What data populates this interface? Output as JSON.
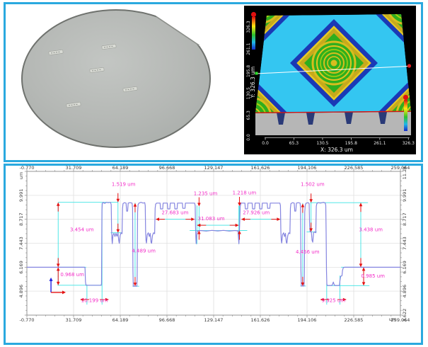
{
  "colors": {
    "frame": "#2aa9df",
    "profile_line": "#8585e0",
    "measure_cyan": "#3be3e3",
    "arrow_red": "#e51212",
    "label_magenta": "#f32cc8",
    "grid": "#e0e0e0",
    "spine": "#8a8a8a",
    "surface_bg": "#000000"
  },
  "wafer": {
    "marks": [
      [
        55,
        62
      ],
      [
        130,
        54
      ],
      [
        113,
        87
      ],
      [
        160,
        114
      ],
      [
        80,
        136
      ]
    ]
  },
  "surface3d": {
    "x_axis": {
      "title": "X: 326.3 um",
      "ticks": [
        "0.0",
        "65.3",
        "130.5",
        "195.8",
        "261.1",
        "326.3"
      ]
    },
    "y_axis": {
      "title": "Y: 326.3 um",
      "ticks": [
        "0.0",
        "65.3",
        "130.5",
        "195.8",
        "261.1",
        "326.3"
      ]
    }
  },
  "chart_data": {
    "type": "line",
    "title": "",
    "unit": "um",
    "xlim": [
      -0.77,
      259.064
    ],
    "ylim": [
      3.622,
      11.265
    ],
    "x_ticks": [
      "-0.770",
      "31.709",
      "64.189",
      "96.668",
      "129.147",
      "161.626",
      "194.106",
      "226.585",
      "259.064"
    ],
    "y_ticks_left": [
      "9.991",
      "8.717",
      "7.443",
      "6.169",
      "4.896"
    ],
    "y_ticks_right": [
      "11.265",
      "9.991",
      "8.717",
      "7.443",
      "6.169",
      "4.896",
      "3.622"
    ],
    "grid": true,
    "profile_points": [
      [
        -0.77,
        6.169
      ],
      [
        39.4,
        6.169
      ],
      [
        39.7,
        6.12
      ],
      [
        40.0,
        5.4
      ],
      [
        40.3,
        5.21
      ],
      [
        50.9,
        5.21
      ],
      [
        51.15,
        5.3
      ],
      [
        51.45,
        9.2
      ],
      [
        51.7,
        9.55
      ],
      [
        52.3,
        9.62
      ],
      [
        53.4,
        9.56
      ],
      [
        54.4,
        9.62
      ],
      [
        55.9,
        9.6
      ],
      [
        57.4,
        9.62
      ],
      [
        57.9,
        9.5
      ],
      [
        58.15,
        8.2
      ],
      [
        58.4,
        7.7
      ],
      [
        58.65,
        7.42
      ],
      [
        59.1,
        7.88
      ],
      [
        59.8,
        7.97
      ],
      [
        60.5,
        7.8
      ],
      [
        61.2,
        7.97
      ],
      [
        61.9,
        7.82
      ],
      [
        62.6,
        7.98
      ],
      [
        63.1,
        7.6
      ],
      [
        63.5,
        7.44
      ],
      [
        64.1,
        7.85
      ],
      [
        64.8,
        8.0
      ],
      [
        65.4,
        7.95
      ],
      [
        65.75,
        9.3
      ],
      [
        66.1,
        9.55
      ],
      [
        67.0,
        9.6
      ],
      [
        68.2,
        9.58
      ],
      [
        68.6,
        9.15
      ],
      [
        69.3,
        9.15
      ],
      [
        69.7,
        9.58
      ],
      [
        71.0,
        9.6
      ],
      [
        72.4,
        9.58
      ],
      [
        72.75,
        9.3
      ],
      [
        73.0,
        6.0
      ],
      [
        73.25,
        5.16
      ],
      [
        75.7,
        5.16
      ],
      [
        75.95,
        5.6
      ],
      [
        76.25,
        9.1
      ],
      [
        76.6,
        9.5
      ],
      [
        77.2,
        9.58
      ],
      [
        78.6,
        9.62
      ],
      [
        80.1,
        9.58
      ],
      [
        81.2,
        9.6
      ],
      [
        81.55,
        9.45
      ],
      [
        81.8,
        8.1
      ],
      [
        82.1,
        7.6
      ],
      [
        82.4,
        7.45
      ],
      [
        83.0,
        7.9
      ],
      [
        83.7,
        8.0
      ],
      [
        84.4,
        7.8
      ],
      [
        85.0,
        7.97
      ],
      [
        85.6,
        7.5
      ],
      [
        86.0,
        7.44
      ],
      [
        86.6,
        7.85
      ],
      [
        87.3,
        8.0
      ],
      [
        88.1,
        7.95
      ],
      [
        88.45,
        9.3
      ],
      [
        88.8,
        9.52
      ],
      [
        89.5,
        9.58
      ],
      [
        91.9,
        9.58
      ],
      [
        92.2,
        9.27
      ],
      [
        93.7,
        9.27
      ],
      [
        94.0,
        9.58
      ],
      [
        96.9,
        9.58
      ],
      [
        97.2,
        9.27
      ],
      [
        98.7,
        9.27
      ],
      [
        99.0,
        9.58
      ],
      [
        101.9,
        9.58
      ],
      [
        102.2,
        9.27
      ],
      [
        103.7,
        9.27
      ],
      [
        104.0,
        9.58
      ],
      [
        107.4,
        9.58
      ],
      [
        107.7,
        9.3
      ],
      [
        109.2,
        9.3
      ],
      [
        109.5,
        9.58
      ],
      [
        115.9,
        9.58
      ],
      [
        116.3,
        9.45
      ],
      [
        116.55,
        8.3
      ],
      [
        116.8,
        7.7
      ],
      [
        117.0,
        7.42
      ],
      [
        117.4,
        7.9
      ],
      [
        117.8,
        8.1
      ],
      [
        120,
        8.12
      ],
      [
        124,
        8.09
      ],
      [
        128,
        8.13
      ],
      [
        132,
        8.1
      ],
      [
        136,
        8.13
      ],
      [
        140,
        8.09
      ],
      [
        144,
        8.12
      ],
      [
        146.1,
        8.1
      ],
      [
        146.45,
        7.7
      ],
      [
        146.7,
        7.42
      ],
      [
        147.0,
        7.95
      ],
      [
        147.3,
        8.6
      ],
      [
        147.6,
        9.4
      ],
      [
        148.2,
        9.58
      ],
      [
        150.9,
        9.58
      ],
      [
        151.2,
        9.27
      ],
      [
        152.7,
        9.27
      ],
      [
        153.0,
        9.58
      ],
      [
        155.9,
        9.58
      ],
      [
        156.2,
        9.27
      ],
      [
        157.7,
        9.27
      ],
      [
        158.0,
        9.58
      ],
      [
        160.9,
        9.58
      ],
      [
        161.2,
        9.27
      ],
      [
        162.7,
        9.27
      ],
      [
        163.0,
        9.58
      ],
      [
        166.4,
        9.58
      ],
      [
        166.7,
        9.3
      ],
      [
        168.2,
        9.3
      ],
      [
        168.5,
        9.58
      ],
      [
        175.2,
        9.58
      ],
      [
        175.6,
        9.45
      ],
      [
        175.9,
        8.1
      ],
      [
        176.2,
        7.6
      ],
      [
        176.5,
        7.45
      ],
      [
        177.1,
        7.9
      ],
      [
        177.8,
        8.0
      ],
      [
        178.5,
        7.8
      ],
      [
        179.1,
        7.97
      ],
      [
        179.7,
        7.5
      ],
      [
        180.1,
        7.44
      ],
      [
        180.7,
        7.85
      ],
      [
        181.4,
        8.0
      ],
      [
        182.2,
        7.95
      ],
      [
        182.55,
        9.3
      ],
      [
        182.9,
        9.55
      ],
      [
        183.9,
        9.6
      ],
      [
        185.2,
        9.58
      ],
      [
        185.6,
        9.15
      ],
      [
        186.3,
        9.15
      ],
      [
        186.7,
        9.58
      ],
      [
        188.0,
        9.6
      ],
      [
        189.3,
        9.58
      ],
      [
        189.6,
        9.3
      ],
      [
        189.85,
        6.0
      ],
      [
        190.1,
        5.17
      ],
      [
        192.0,
        5.17
      ],
      [
        192.25,
        5.6
      ],
      [
        192.55,
        9.1
      ],
      [
        192.9,
        9.5
      ],
      [
        193.5,
        9.58
      ],
      [
        195.0,
        9.6
      ],
      [
        195.6,
        9.55
      ],
      [
        195.9,
        8.4
      ],
      [
        196.2,
        8.05
      ],
      [
        197.1,
        8.05
      ],
      [
        197.6,
        7.6
      ],
      [
        198.1,
        7.5
      ],
      [
        198.7,
        8.0
      ],
      [
        199.4,
        8.05
      ],
      [
        200.2,
        8.0
      ],
      [
        200.55,
        9.4
      ],
      [
        200.9,
        9.55
      ],
      [
        201.8,
        9.6
      ],
      [
        203.5,
        9.58
      ],
      [
        205.5,
        9.62
      ],
      [
        206.8,
        9.58
      ],
      [
        207.15,
        9.45
      ],
      [
        207.4,
        8.0
      ],
      [
        207.65,
        6.0
      ],
      [
        207.9,
        5.26
      ],
      [
        208.3,
        5.2
      ],
      [
        211.4,
        5.2
      ],
      [
        211.9,
        5.28
      ],
      [
        212.4,
        5.38
      ],
      [
        212.9,
        5.26
      ],
      [
        213.4,
        5.2
      ],
      [
        216.7,
        5.2
      ],
      [
        217.0,
        5.45
      ],
      [
        217.5,
        5.68
      ],
      [
        218.4,
        5.72
      ],
      [
        218.8,
        6.0
      ],
      [
        219.3,
        6.14
      ],
      [
        220.2,
        6.169
      ],
      [
        259.064,
        6.169
      ]
    ],
    "ref_h": [
      [
        9.62,
        21,
        62.8
      ],
      [
        9.6,
        196.3,
        236.5
      ],
      [
        6.169,
        20.5,
        40.5
      ],
      [
        5.21,
        20.5,
        51.6
      ],
      [
        8.12,
        112.5,
        152.5
      ],
      [
        8.0,
        57.5,
        64.8
      ],
      [
        8.05,
        193.8,
        200.8
      ],
      [
        6.169,
        217.8,
        237.5
      ],
      [
        5.19,
        207.6,
        237.5
      ],
      [
        5.16,
        72.7,
        77.3
      ],
      [
        5.17,
        189.4,
        193.3
      ]
    ],
    "ref_v": [
      [
        21,
        5.21,
        9.62
      ],
      [
        41.0,
        4.18,
        5.25
      ],
      [
        51.5,
        4.18,
        9.58
      ],
      [
        62.6,
        8.0,
        9.62
      ],
      [
        74.5,
        5.16,
        9.6
      ],
      [
        117.5,
        7.4,
        9.45
      ],
      [
        146.7,
        7.4,
        9.45
      ],
      [
        119.0,
        8.12,
        9.4
      ],
      [
        147.1,
        8.12,
        9.42
      ],
      [
        191.1,
        5.17,
        9.58
      ],
      [
        196.9,
        8.05,
        9.62
      ],
      [
        207.8,
        4.18,
        5.3
      ],
      [
        217.0,
        4.18,
        5.72
      ],
      [
        231.5,
        6.169,
        9.6
      ],
      [
        233.5,
        5.19,
        6.169
      ]
    ],
    "annotations": [
      {
        "label": "3.454 um",
        "lx": 37.5,
        "ly": 8.08,
        "arrows": [
          [
            21,
            9.62,
            "up"
          ],
          [
            21,
            6.169,
            "down"
          ]
        ]
      },
      {
        "label": "0.968 um",
        "lx": 30.8,
        "ly": 5.7,
        "arrows": [
          [
            21,
            6.169,
            "up"
          ],
          [
            21,
            5.21,
            "down"
          ]
        ]
      },
      {
        "label": "10.199 um",
        "lx": 46.3,
        "ly": 4.32,
        "arrows": [
          [
            36.2,
            4.45,
            "left"
          ],
          [
            56.3,
            4.45,
            "right"
          ]
        ]
      },
      {
        "label": "1.519 um",
        "lx": 66.5,
        "ly": 10.5,
        "arrows": [
          [
            62.6,
            9.62,
            "down"
          ],
          [
            62.6,
            8.0,
            "down"
          ]
        ]
      },
      {
        "label": "4.489 um",
        "lx": 80.5,
        "ly": 6.95,
        "arrows": [
          [
            74.5,
            9.58,
            "up"
          ],
          [
            74.5,
            5.16,
            "down"
          ]
        ]
      },
      {
        "label": "27.683 um",
        "lx": 102.3,
        "ly": 8.98,
        "line": [
          88.8,
          8.72,
          116.0,
          8.72
        ],
        "arrows": [
          [
            88.8,
            8.72,
            "left"
          ],
          [
            116.0,
            8.72,
            "right"
          ]
        ]
      },
      {
        "label": "31.083 um",
        "lx": 127.5,
        "ly": 8.66,
        "line": [
          117.5,
          8.4,
          146.7,
          8.4
        ],
        "arrows": [
          [
            117.5,
            8.4,
            "left"
          ],
          [
            146.7,
            8.4,
            "right"
          ]
        ]
      },
      {
        "label": "1.235 um",
        "lx": 123.5,
        "ly": 10.0,
        "arrows": [
          [
            119.0,
            9.4,
            "down"
          ],
          [
            119.0,
            8.12,
            "up"
          ]
        ]
      },
      {
        "label": "1.218 um",
        "lx": 150.5,
        "ly": 10.04,
        "arrows": [
          [
            147.1,
            9.42,
            "down"
          ],
          [
            147.1,
            8.12,
            "up"
          ]
        ]
      },
      {
        "label": "27.926 um",
        "lx": 158.8,
        "ly": 8.98,
        "line": [
          148.3,
          8.72,
          175.6,
          8.72
        ],
        "arrows": [
          [
            148.3,
            8.72,
            "left"
          ],
          [
            175.6,
            8.72,
            "right"
          ]
        ]
      },
      {
        "label": "4.456 um",
        "lx": 194.5,
        "ly": 6.9,
        "arrows": [
          [
            191.1,
            9.55,
            "up"
          ],
          [
            191.1,
            5.17,
            "down"
          ]
        ]
      },
      {
        "label": "1.502 um",
        "lx": 198.0,
        "ly": 10.5,
        "arrows": [
          [
            196.9,
            9.6,
            "down"
          ],
          [
            196.9,
            8.05,
            "down"
          ]
        ]
      },
      {
        "label": "3.438 um",
        "lx": 238.5,
        "ly": 8.08,
        "arrows": [
          [
            231.5,
            9.6,
            "up"
          ],
          [
            231.5,
            6.169,
            "down"
          ]
        ]
      },
      {
        "label": "0.985 um",
        "lx": 240.0,
        "ly": 5.62,
        "arrows": [
          [
            233.5,
            6.169,
            "up"
          ],
          [
            233.5,
            5.19,
            "down"
          ]
        ]
      },
      {
        "label": "9.325 um",
        "lx": 212.5,
        "ly": 4.32,
        "arrows": [
          [
            203.2,
            4.45,
            "left"
          ],
          [
            221.6,
            4.45,
            "right"
          ]
        ]
      }
    ],
    "origin_marker": {
      "x": 16,
      "y": 4.83,
      "y_up": 5.62,
      "x_right": 26.3
    }
  }
}
